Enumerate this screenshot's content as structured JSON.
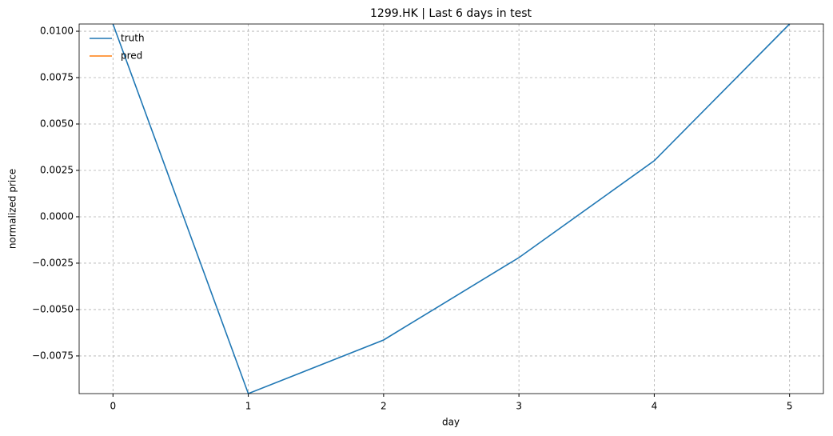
{
  "chart_data": {
    "type": "line",
    "title": "1299.HK | Last 6 days in test",
    "xlabel": "day",
    "ylabel": "normalized price",
    "x": [
      0,
      1,
      2,
      3,
      4,
      5
    ],
    "series": [
      {
        "name": "truth",
        "color": "#1f77b4",
        "values": [
          0.01039,
          -0.00953,
          -0.00664,
          -0.0022,
          0.00302,
          0.01039
        ]
      },
      {
        "name": "pred",
        "color": "#ff7f0e",
        "values": [
          null,
          null,
          null,
          null,
          null,
          null
        ]
      }
    ],
    "xlim": [
      -0.25,
      5.25
    ],
    "xticks": [
      0,
      1,
      2,
      3,
      4,
      5
    ],
    "ylim": [
      -0.00953,
      0.01039
    ],
    "yticks": [
      {
        "value": -0.0075,
        "label": "−0.0075"
      },
      {
        "value": -0.005,
        "label": "−0.0050"
      },
      {
        "value": -0.0025,
        "label": "−0.0025"
      },
      {
        "value": 0,
        "label": "0.0000"
      },
      {
        "value": 0.0025,
        "label": "0.0025"
      },
      {
        "value": 0.005,
        "label": "0.0050"
      },
      {
        "value": 0.0075,
        "label": "0.0075"
      },
      {
        "value": 0.01,
        "label": "0.0100"
      }
    ],
    "grid": true,
    "legend": "upper left"
  }
}
